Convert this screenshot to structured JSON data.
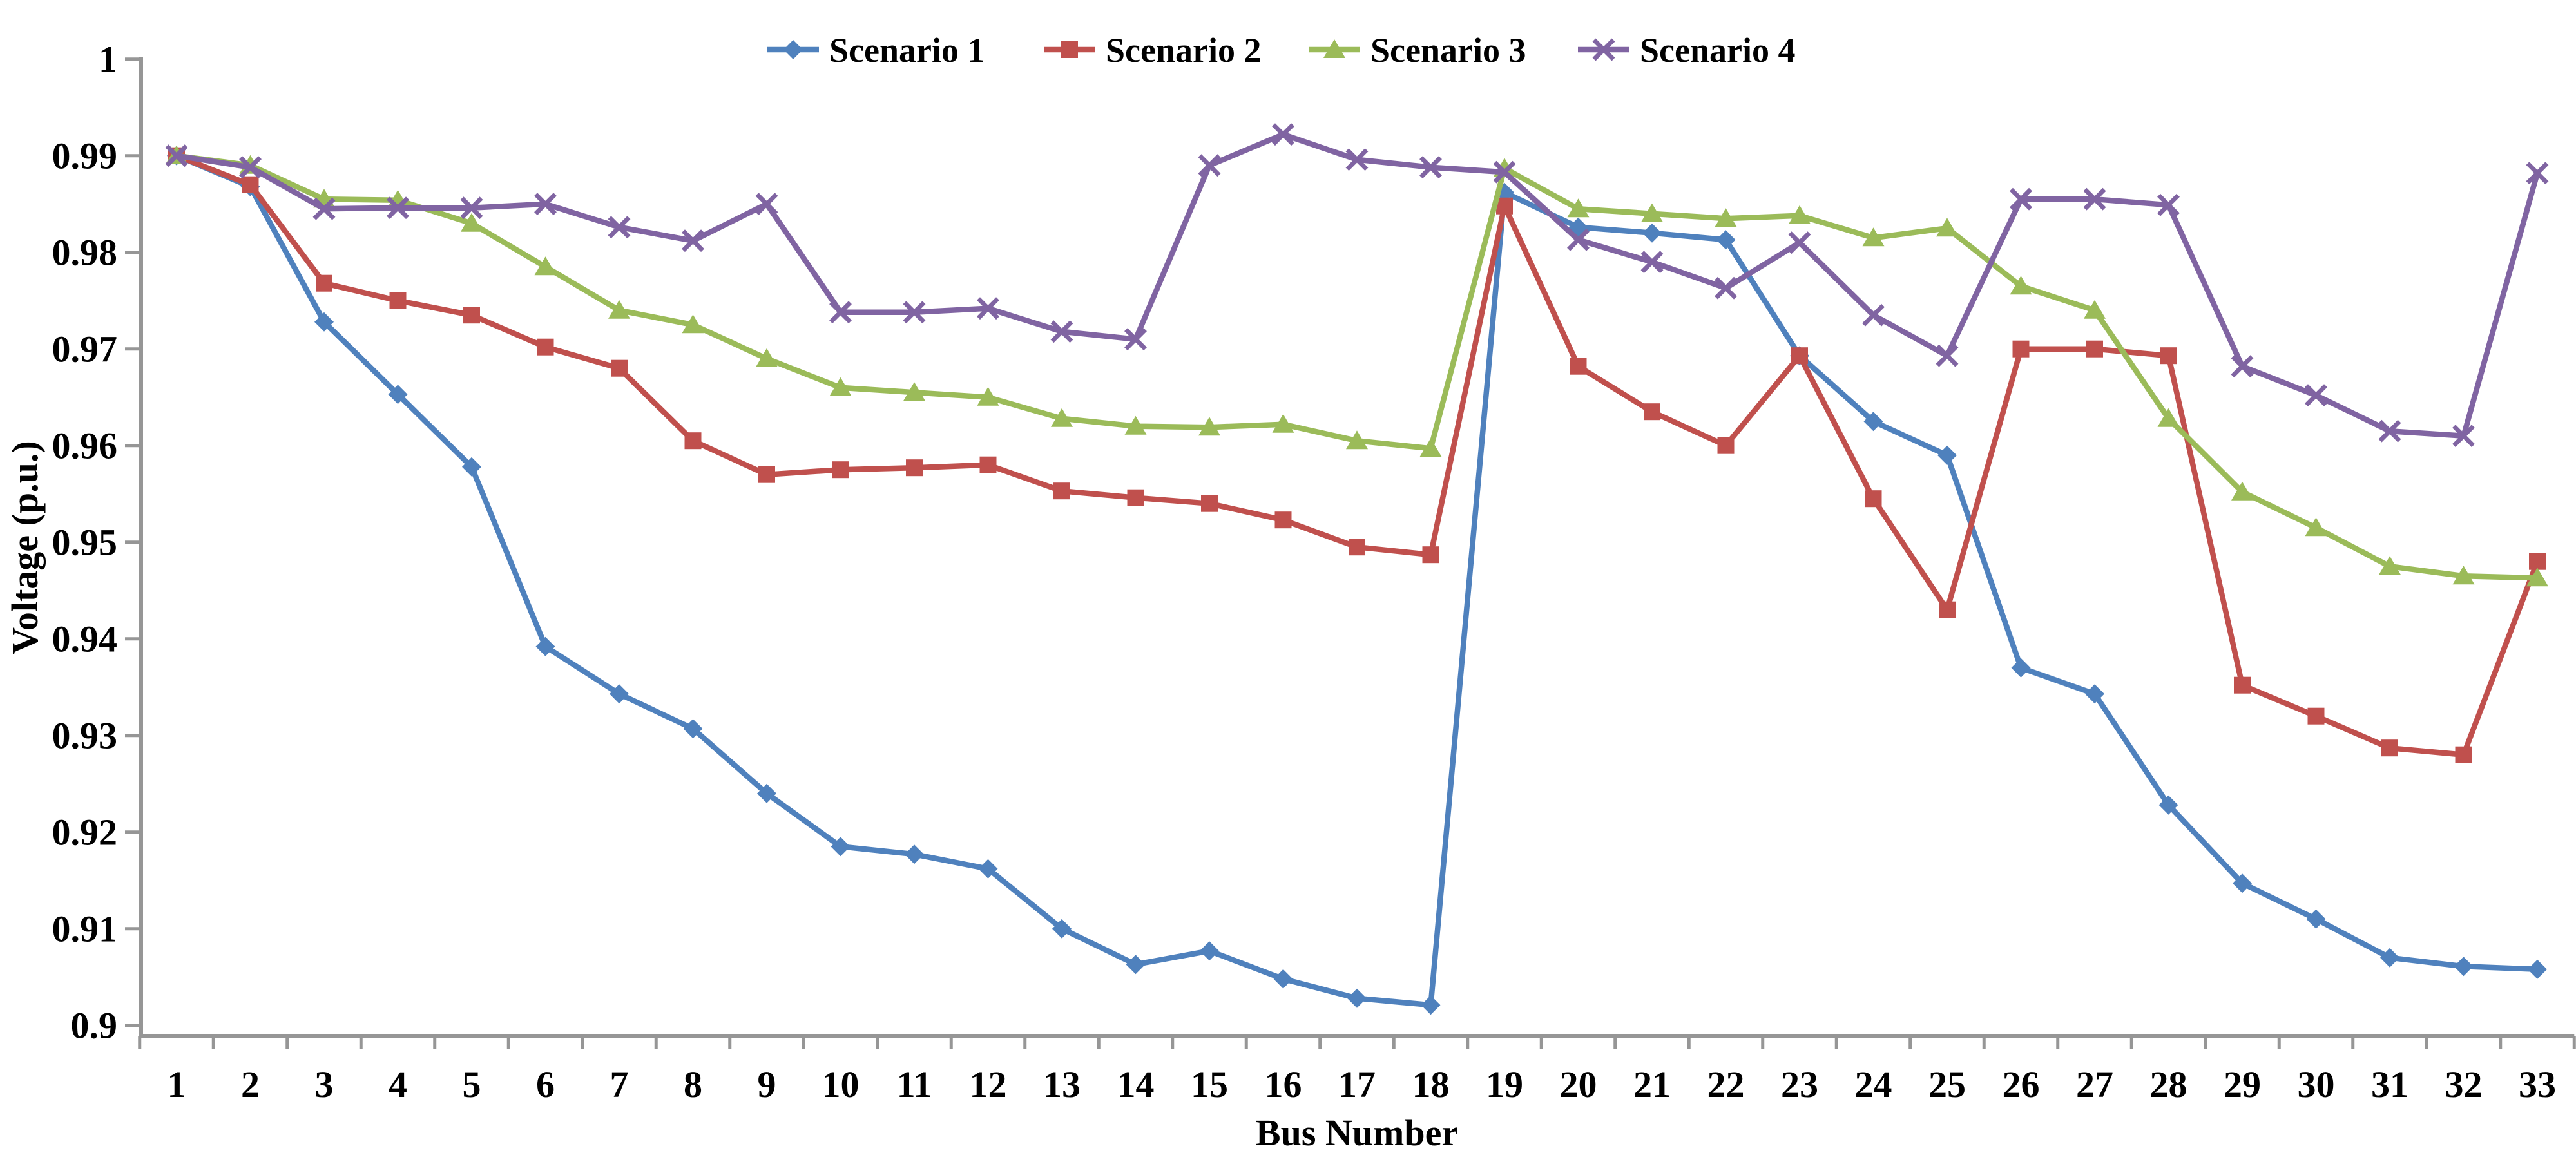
{
  "chart_data": {
    "type": "line",
    "title": "",
    "xlabel": "Bus Number",
    "ylabel": "Voltage (p.u.)",
    "x_categories": [
      "1",
      "2",
      "3",
      "4",
      "5",
      "6",
      "7",
      "8",
      "9",
      "10",
      "11",
      "12",
      "13",
      "14",
      "15",
      "16",
      "17",
      "18",
      "19",
      "20",
      "21",
      "22",
      "23",
      "24",
      "25",
      "26",
      "27",
      "28",
      "29",
      "30",
      "31",
      "32",
      "33"
    ],
    "y_tick_labels": [
      "1",
      "0.99",
      "0.98",
      "0.97",
      "0.96",
      "0.95",
      "0.94",
      "0.93",
      "0.92",
      "0.91",
      "0.9"
    ],
    "y_tick_values": [
      1.0,
      0.99,
      0.98,
      0.97,
      0.96,
      0.95,
      0.94,
      0.93,
      0.92,
      0.91,
      0.9
    ],
    "ylim": [
      0.9,
      1.0
    ],
    "grid": false,
    "legend_position": "top-center",
    "axis_color": "#969696",
    "text_color": "#000000",
    "series": [
      {
        "name": "Scenario 1",
        "color": "#4F81BD",
        "marker": "diamond",
        "values": [
          0.99,
          0.9868,
          0.9728,
          0.9653,
          0.9578,
          0.9392,
          0.9343,
          0.9307,
          0.924,
          0.9185,
          0.9177,
          0.9162,
          0.91,
          0.9063,
          0.9077,
          0.9048,
          0.9028,
          0.9021,
          0.9862,
          0.9826,
          0.982,
          0.9813,
          0.9693,
          0.9625,
          0.959,
          0.937,
          0.9343,
          0.9228,
          0.9147,
          0.911,
          0.907,
          0.9061,
          0.9058
        ]
      },
      {
        "name": "Scenario 2",
        "color": "#C0504D",
        "marker": "square",
        "values": [
          0.99,
          0.987,
          0.9768,
          0.975,
          0.9735,
          0.9702,
          0.968,
          0.9605,
          0.957,
          0.9575,
          0.9577,
          0.958,
          0.9553,
          0.9546,
          0.954,
          0.9523,
          0.9495,
          0.9487,
          0.9848,
          0.9682,
          0.9635,
          0.96,
          0.9693,
          0.9545,
          0.943,
          0.97,
          0.97,
          0.9693,
          0.9352,
          0.932,
          0.9287,
          0.928,
          0.948
        ]
      },
      {
        "name": "Scenario 3",
        "color": "#9BBB59",
        "marker": "triangle",
        "values": [
          0.99,
          0.989,
          0.9855,
          0.9854,
          0.983,
          0.9785,
          0.974,
          0.9725,
          0.969,
          0.966,
          0.9655,
          0.965,
          0.9628,
          0.962,
          0.9619,
          0.9622,
          0.9605,
          0.9597,
          0.9887,
          0.9845,
          0.984,
          0.9835,
          0.9838,
          0.9815,
          0.9825,
          0.9765,
          0.974,
          0.9628,
          0.9552,
          0.9515,
          0.9475,
          0.9465,
          0.9463
        ]
      },
      {
        "name": "Scenario 4",
        "color": "#8064A2",
        "marker": "x",
        "values": [
          0.99,
          0.9888,
          0.9845,
          0.9846,
          0.9846,
          0.985,
          0.9826,
          0.9812,
          0.985,
          0.9738,
          0.9738,
          0.9742,
          0.9718,
          0.971,
          0.989,
          0.9922,
          0.9896,
          0.9888,
          0.9883,
          0.9813,
          0.979,
          0.9763,
          0.981,
          0.9735,
          0.9693,
          0.9855,
          0.9855,
          0.9849,
          0.9682,
          0.9652,
          0.9615,
          0.961,
          0.9882
        ]
      }
    ]
  }
}
